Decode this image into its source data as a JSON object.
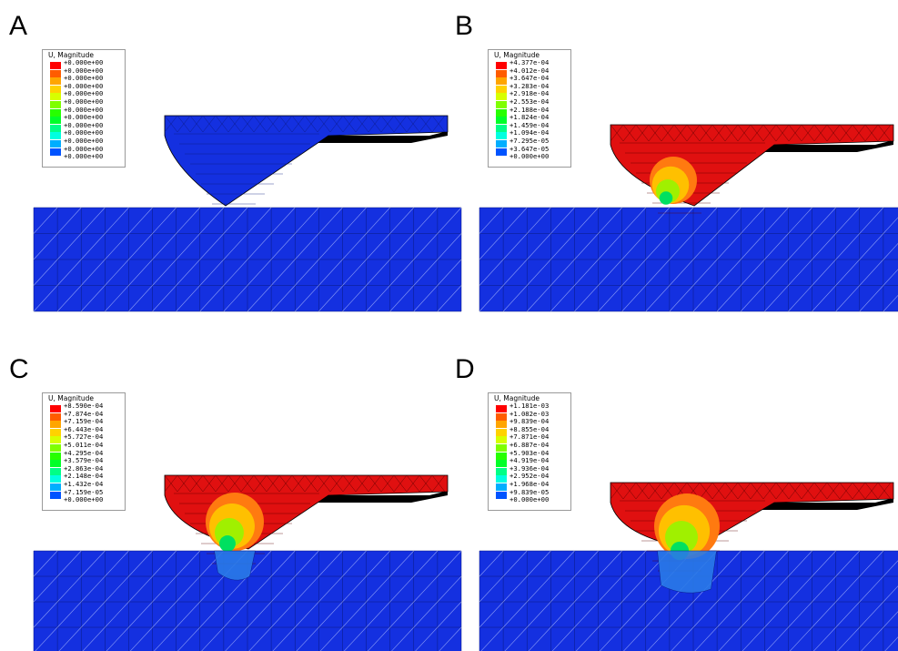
{
  "legend_title": "U, Magnitude",
  "legend_colors": [
    "#ff0000",
    "#ff5c00",
    "#ffa500",
    "#ffd200",
    "#d7ff00",
    "#7fff00",
    "#27ff00",
    "#00ff29",
    "#00ff86",
    "#00ffe0",
    "#00aeff",
    "#0053ff",
    "#0000ff"
  ],
  "panels": [
    {
      "letter": "A",
      "label_values": [
        "+0.000e+00",
        "+0.000e+00",
        "+0.000e+00",
        "+0.000e+00",
        "+0.000e+00",
        "+0.000e+00",
        "+0.000e+00",
        "+0.000e+00",
        "+0.000e+00",
        "+0.000e+00",
        "+0.000e+00",
        "+0.000e+00",
        "+0.000e+00"
      ]
    },
    {
      "letter": "B",
      "label_values": [
        "+4.377e-04",
        "+4.012e-04",
        "+3.647e-04",
        "+3.283e-04",
        "+2.918e-04",
        "+2.553e-04",
        "+2.188e-04",
        "+1.824e-04",
        "+1.459e-04",
        "+1.094e-04",
        "+7.295e-05",
        "+3.647e-05",
        "+0.000e+00"
      ]
    },
    {
      "letter": "C",
      "label_values": [
        "+8.590e-04",
        "+7.874e-04",
        "+7.159e-04",
        "+6.443e-04",
        "+5.727e-04",
        "+5.011e-04",
        "+4.295e-04",
        "+3.579e-04",
        "+2.863e-04",
        "+2.148e-04",
        "+1.432e-04",
        "+7.159e-05",
        "+0.000e+00"
      ]
    },
    {
      "letter": "D",
      "label_values": [
        "+1.181e-03",
        "+1.082e-03",
        "+9.839e-04",
        "+8.855e-04",
        "+7.871e-04",
        "+6.887e-04",
        "+5.903e-04",
        "+4.919e-04",
        "+3.936e-04",
        "+2.952e-04",
        "+1.968e-04",
        "+9.839e-05",
        "+0.000e+00"
      ]
    }
  ]
}
